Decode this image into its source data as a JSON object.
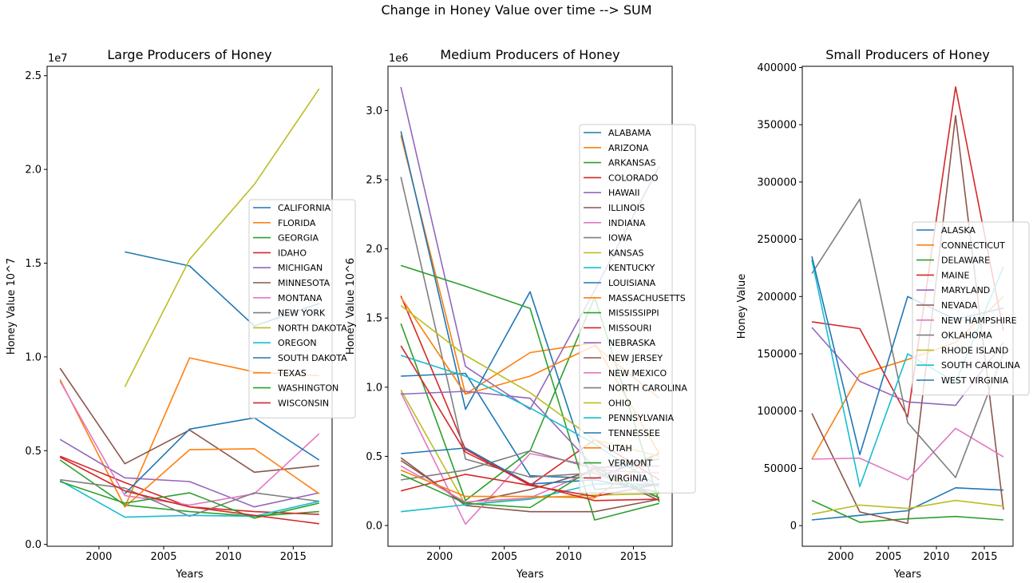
{
  "figure": {
    "suptitle": "Change in Honey Value over time --> SUM"
  },
  "chart_data": [
    {
      "type": "line",
      "title": "Large Producers of Honey",
      "xlabel": "Years",
      "ylabel": "Honey Value 10^7",
      "offset_text": "1e7",
      "x": [
        1997,
        2002,
        2007,
        2012,
        2017
      ],
      "xlim": [
        1996,
        2018
      ],
      "ylim": [
        -100000,
        25500000
      ],
      "xticks": [
        2000,
        2005,
        2010,
        2015
      ],
      "yticks": [
        0,
        5000000,
        10000000,
        15000000,
        20000000,
        25000000
      ],
      "ytick_labels": [
        "0.0",
        "0.5",
        "1.0",
        "1.5",
        "2.0",
        "2.5"
      ],
      "legend_placement": "center-right",
      "series": [
        {
          "name": "CALIFORNIA",
          "values": [
            null,
            15600000,
            14850000,
            11650000,
            12850000
          ]
        },
        {
          "name": "FLORIDA",
          "values": [
            8800000,
            2000000,
            9950000,
            9200000,
            9000000
          ]
        },
        {
          "name": "GEORGIA",
          "values": [
            4500000,
            2100000,
            1750000,
            1500000,
            1750000
          ]
        },
        {
          "name": "IDAHO",
          "values": [
            4700000,
            3300000,
            2000000,
            1750000,
            1600000
          ]
        },
        {
          "name": "MICHIGAN",
          "values": [
            5600000,
            3550000,
            3350000,
            2000000,
            2750000
          ]
        },
        {
          "name": "MINNESOTA",
          "values": [
            9400000,
            4300000,
            6100000,
            3850000,
            4200000
          ]
        },
        {
          "name": "MONTANA",
          "values": [
            8700000,
            2600000,
            2100000,
            2700000,
            5900000
          ]
        },
        {
          "name": "NEW YORK",
          "values": [
            3450000,
            3000000,
            1500000,
            2750000,
            2300000
          ]
        },
        {
          "name": "NORTH DAKOTA",
          "values": [
            null,
            8400000,
            15200000,
            19200000,
            24300000
          ]
        },
        {
          "name": "OREGON",
          "values": [
            3400000,
            1450000,
            1550000,
            1500000,
            2300000
          ]
        },
        {
          "name": "SOUTH DAKOTA",
          "values": [
            null,
            2700000,
            6150000,
            6750000,
            4500000
          ]
        },
        {
          "name": "TEXAS",
          "values": [
            null,
            2000000,
            5050000,
            5100000,
            2700000
          ]
        },
        {
          "name": "WASHINGTON",
          "values": [
            3350000,
            2200000,
            2750000,
            1400000,
            2200000
          ]
        },
        {
          "name": "WISCONSIN",
          "values": [
            4650000,
            2850000,
            2000000,
            1550000,
            1100000
          ]
        }
      ]
    },
    {
      "type": "line",
      "title": "Medium Producers of Honey",
      "xlabel": "Years",
      "ylabel": "Honey Value 10^6",
      "offset_text": "1e6",
      "x": [
        1997,
        2002,
        2007,
        2012,
        2017
      ],
      "xlim": [
        1996,
        2018
      ],
      "ylim": [
        -150000,
        3320000
      ],
      "xticks": [
        2000,
        2005,
        2010,
        2015
      ],
      "yticks": [
        0,
        500000,
        1000000,
        1500000,
        2000000,
        2500000,
        3000000
      ],
      "ytick_labels": [
        "0.0",
        "0.5",
        "1.0",
        "1.5",
        "2.0",
        "2.5",
        "3.0"
      ],
      "legend_placement": "center-right",
      "series": [
        {
          "name": "ALABAMA",
          "values": [
            1080000,
            1100000,
            360000,
            340000,
            520000
          ]
        },
        {
          "name": "ARIZONA",
          "values": [
            2820000,
            950000,
            1250000,
            1320000,
            520000
          ]
        },
        {
          "name": "ARKANSAS",
          "values": [
            1460000,
            180000,
            540000,
            1650000,
            170000
          ]
        },
        {
          "name": "COLORADO",
          "values": [
            1660000,
            550000,
            290000,
            620000,
            330000
          ]
        },
        {
          "name": "HAWAII",
          "values": [
            3170000,
            1150000,
            840000,
            1700000,
            2600000
          ]
        },
        {
          "name": "ILLINOIS",
          "values": [
            490000,
            145000,
            100000,
            100000,
            190000
          ]
        },
        {
          "name": "INDIANA",
          "values": [
            960000,
            10000,
            520000,
            430000,
            280000
          ]
        },
        {
          "name": "IOWA",
          "values": [
            2520000,
            480000,
            350000,
            380000,
            200000
          ]
        },
        {
          "name": "KANSAS",
          "values": [
            980000,
            150000,
            200000,
            220000,
            230000
          ]
        },
        {
          "name": "KENTUCKY",
          "values": [
            100000,
            150000,
            190000,
            300000,
            300000
          ]
        },
        {
          "name": "LOUISIANA",
          "values": [
            2850000,
            840000,
            1690000,
            260000,
            300000
          ]
        },
        {
          "name": "MASSACHUSETTS",
          "values": [
            1650000,
            950000,
            1080000,
            1300000,
            920000
          ]
        },
        {
          "name": "MISSISSIPPI",
          "values": [
            1880000,
            1730000,
            1570000,
            40000,
            160000
          ]
        },
        {
          "name": "MISSOURI",
          "values": [
            250000,
            370000,
            290000,
            210000,
            300000
          ]
        },
        {
          "name": "NEBRASKA",
          "values": [
            950000,
            970000,
            920000,
            420000,
            430000
          ]
        },
        {
          "name": "NEW JERSEY",
          "values": [
            470000,
            160000,
            260000,
            400000,
            180000
          ]
        },
        {
          "name": "NEW MEXICO",
          "values": [
            430000,
            170000,
            200000,
            400000,
            380000
          ]
        },
        {
          "name": "NORTH CAROLINA",
          "values": [
            330000,
            400000,
            540000,
            410000,
            480000
          ]
        },
        {
          "name": "OHIO",
          "values": [
            1590000,
            1230000,
            960000,
            620000,
            500000
          ]
        },
        {
          "name": "PENNSYLVANIA",
          "values": [
            1230000,
            1080000,
            850000,
            590000,
            280000
          ]
        },
        {
          "name": "TENNESSEE",
          "values": [
            520000,
            560000,
            300000,
            330000,
            240000
          ]
        },
        {
          "name": "UTAH",
          "values": [
            400000,
            210000,
            210000,
            200000,
            530000
          ]
        },
        {
          "name": "VERMONT",
          "values": [
            370000,
            160000,
            130000,
            420000,
            200000
          ]
        },
        {
          "name": "VIRGINIA",
          "values": [
            1300000,
            530000,
            300000,
            180000,
            190000
          ]
        }
      ]
    },
    {
      "type": "line",
      "title": "Small Producers of Honey",
      "xlabel": "Years",
      "ylabel": "Honey Value",
      "x": [
        1997,
        2002,
        2007,
        2012,
        2017
      ],
      "xlim": [
        1996,
        2018
      ],
      "ylim": [
        -18000,
        401000
      ],
      "xticks": [
        2000,
        2005,
        2010,
        2015
      ],
      "yticks": [
        0,
        50000,
        100000,
        150000,
        200000,
        250000,
        300000,
        350000,
        400000
      ],
      "ytick_labels": [
        "0",
        "50000",
        "100000",
        "150000",
        "200000",
        "250000",
        "300000",
        "350000",
        "400000"
      ],
      "legend_placement": "center-right",
      "series": [
        {
          "name": "ALASKA",
          "values": [
            5000,
            9000,
            13000,
            33000,
            31000
          ]
        },
        {
          "name": "CONNECTICUT",
          "values": [
            58000,
            132000,
            145000,
            160000,
            200000
          ]
        },
        {
          "name": "DELAWARE",
          "values": [
            22000,
            3000,
            6000,
            8000,
            5000
          ]
        },
        {
          "name": "MAINE",
          "values": [
            178000,
            172000,
            95000,
            383000,
            170000
          ]
        },
        {
          "name": "MARYLAND",
          "values": [
            173000,
            126000,
            108000,
            105000,
            160000
          ]
        },
        {
          "name": "NEVADA",
          "values": [
            98000,
            12000,
            2000,
            358000,
            14000
          ]
        },
        {
          "name": "NEW HAMPSHIRE",
          "values": [
            58000,
            59000,
            40000,
            85000,
            60000
          ]
        },
        {
          "name": "OKLAHOMA",
          "values": [
            220000,
            285000,
            90000,
            42000,
            150000
          ]
        },
        {
          "name": "RHODE ISLAND",
          "values": [
            10000,
            18000,
            15000,
            22000,
            17000
          ]
        },
        {
          "name": "SOUTH CAROLINA",
          "values": [
            232000,
            34000,
            150000,
            125000,
            226000
          ]
        },
        {
          "name": "WEST VIRGINIA",
          "values": [
            235000,
            62000,
            200000,
            180000,
            190000
          ]
        }
      ]
    }
  ],
  "colors": [
    "#1f77b4",
    "#ff7f0e",
    "#2ca02c",
    "#d62728",
    "#9467bd",
    "#8c564b",
    "#e377c2",
    "#7f7f7f",
    "#bcbd22",
    "#17becf"
  ]
}
